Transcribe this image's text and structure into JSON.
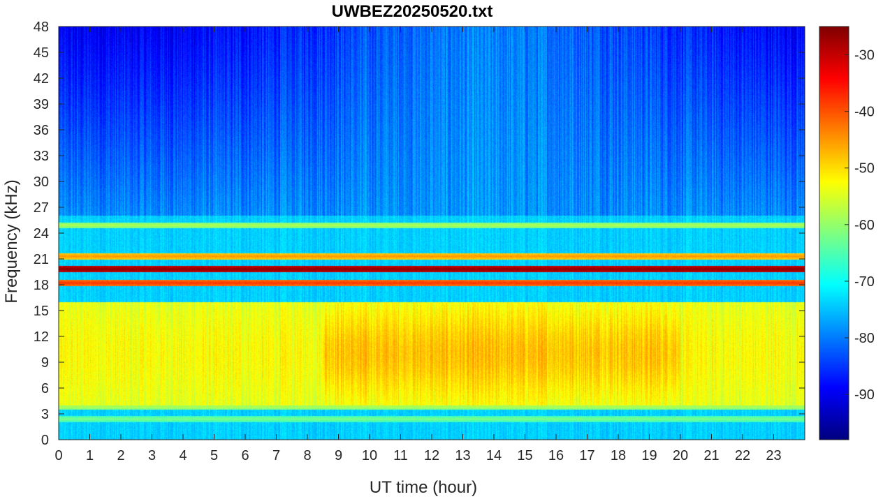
{
  "chart_data": {
    "type": "heatmap",
    "title": "UWBEZ20250520.txt",
    "xlabel": "UT time (hour)",
    "ylabel": "Frequency (kHz)",
    "xlim": [
      0,
      24
    ],
    "ylim": [
      0,
      48
    ],
    "x_ticks": [
      0,
      1,
      2,
      3,
      4,
      5,
      6,
      7,
      8,
      9,
      10,
      11,
      12,
      13,
      14,
      15,
      16,
      17,
      18,
      19,
      20,
      21,
      22,
      23
    ],
    "y_ticks": [
      0,
      3,
      6,
      9,
      12,
      15,
      18,
      21,
      24,
      27,
      30,
      33,
      36,
      39,
      42,
      45,
      48
    ],
    "colorbar": {
      "colormap": "jet",
      "range": [
        -98,
        -25
      ],
      "ticks": [
        -90,
        -80,
        -70,
        -60,
        -50,
        -40,
        -30
      ]
    },
    "features": {
      "background_db": -78,
      "broadband_hiss": {
        "freq_range_khz": [
          4,
          16
        ],
        "level_db": -55,
        "peak_hours": [
          8.5,
          20
        ],
        "peak_level_db": -48
      },
      "transmitter_lines": [
        {
          "freq_khz": 19.8,
          "level_db": -26
        },
        {
          "freq_khz": 18.2,
          "level_db": -38
        },
        {
          "freq_khz": 21.3,
          "level_db": -45
        },
        {
          "freq_khz": 24.9,
          "level_db": -58
        },
        {
          "freq_khz": 3.8,
          "level_db": -58
        },
        {
          "freq_khz": 2.4,
          "level_db": -62
        }
      ]
    }
  }
}
